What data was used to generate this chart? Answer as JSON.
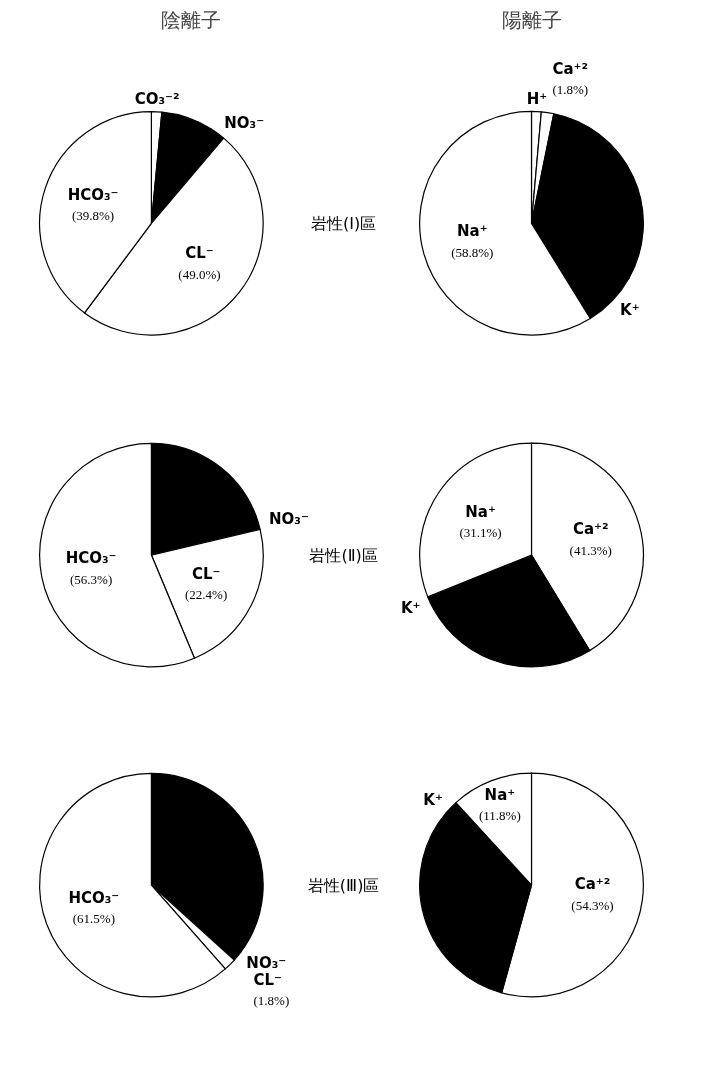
{
  "chart_data": [
    {
      "type": "pie",
      "title": "陰離子",
      "categories": [
        "CO₃⁻²",
        null,
        "NO₃⁻",
        "CL⁻",
        "HCO₃⁻"
      ],
      "values": [
        1.5,
        7.5,
        2.2,
        49.0,
        39.8
      ],
      "colors": [
        "#ffffff",
        "#000000",
        "#000000",
        "#ffffff",
        "#ffffff"
      ],
      "value_labels": [
        null,
        null,
        null,
        "(49.0%)",
        "(39.8%)"
      ],
      "annotations": [
        "岩性(Ⅰ)區"
      ]
    },
    {
      "type": "pie",
      "title": "陽離子",
      "categories": [
        "H⁺",
        "Ca⁺²",
        null,
        "K⁺",
        "Na⁺"
      ],
      "values": [
        1.4,
        1.8,
        30.0,
        8.0,
        58.8
      ],
      "colors": [
        "#ffffff",
        "#ffffff",
        "#000000",
        "#000000",
        "#ffffff"
      ],
      "value_labels": [
        null,
        "(1.8%)",
        null,
        null,
        "(58.8%)"
      ]
    },
    {
      "type": "pie",
      "categories": [
        null,
        "NO₃⁻",
        "CL⁻",
        "HCO₃⁻"
      ],
      "values": [
        19.3,
        2.0,
        22.4,
        56.3
      ],
      "colors": [
        "#000000",
        "#000000",
        "#ffffff",
        "#ffffff"
      ],
      "value_labels": [
        null,
        null,
        "(22.4%)",
        "(56.3%)"
      ],
      "annotations": [
        "岩性(Ⅱ)區"
      ]
    },
    {
      "type": "pie",
      "categories": [
        "Ca⁺²",
        null,
        "K⁺",
        "Na⁺"
      ],
      "values": [
        41.3,
        25.6,
        2.0,
        31.1
      ],
      "colors": [
        "#ffffff",
        "#000000",
        "#000000",
        "#ffffff"
      ],
      "value_labels": [
        "(41.3%)",
        null,
        null,
        "(31.1%)"
      ]
    },
    {
      "type": "pie",
      "categories": [
        null,
        "NO₃⁻",
        "CL⁻",
        "HCO₃⁻"
      ],
      "values": [
        35.2,
        1.5,
        1.8,
        61.5
      ],
      "colors": [
        "#000000",
        "#000000",
        "#ffffff",
        "#ffffff"
      ],
      "value_labels": [
        null,
        null,
        "(1.8%)",
        "(61.5%)"
      ],
      "annotations": [
        "岩性(Ⅲ)區"
      ]
    },
    {
      "type": "pie",
      "categories": [
        "Ca⁺²",
        null,
        "K⁺",
        "Na⁺"
      ],
      "values": [
        54.3,
        31.9,
        2.0,
        11.8
      ],
      "colors": [
        "#ffffff",
        "#000000",
        "#000000",
        "#ffffff"
      ],
      "value_labels": [
        "(54.3%)",
        null,
        null,
        "(11.8%)"
      ]
    }
  ]
}
